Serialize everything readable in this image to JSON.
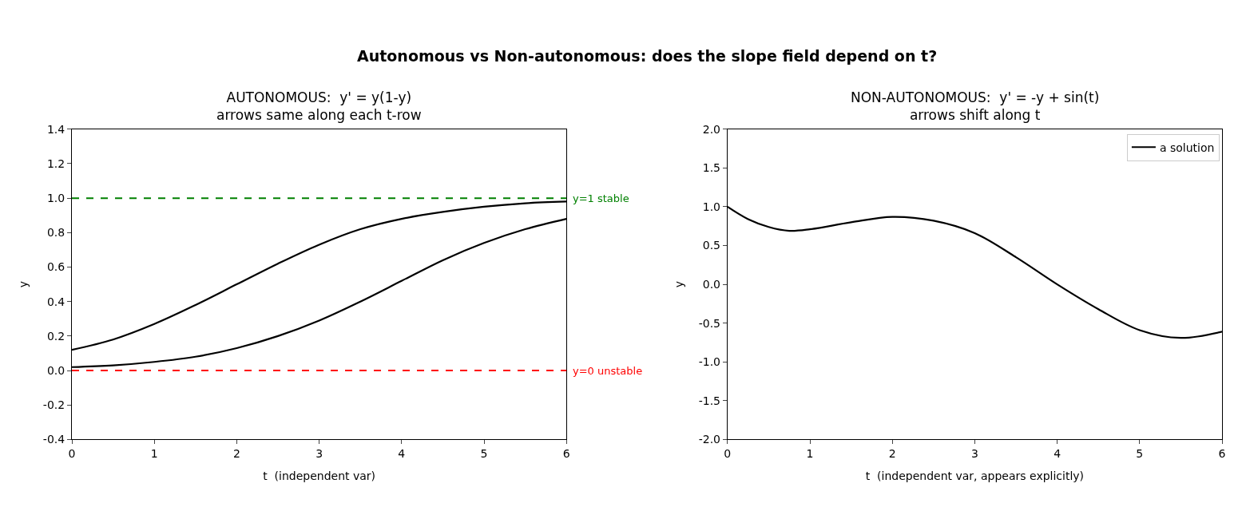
{
  "chart_data": [
    {
      "type": "line",
      "title": "AUTONOMOUS:  y' = y(1-y)\narrows same along each t-row",
      "xlabel": "t  (independent var)",
      "ylabel": "y",
      "x": [
        0,
        0.5,
        1,
        1.5,
        2,
        2.5,
        3,
        3.5,
        4,
        4.5,
        5,
        5.5,
        6
      ],
      "series": [
        {
          "color": "#000000",
          "values": [
            0.12,
            0.18,
            0.27,
            0.38,
            0.5,
            0.62,
            0.73,
            0.82,
            0.88,
            0.92,
            0.95,
            0.97,
            0.98
          ]
        },
        {
          "color": "#000000",
          "values": [
            0.02,
            0.03,
            0.05,
            0.08,
            0.13,
            0.2,
            0.29,
            0.4,
            0.52,
            0.64,
            0.74,
            0.82,
            0.88
          ]
        }
      ],
      "ref_lines": [
        {
          "axis": "y",
          "value": 1,
          "label": "y=1 stable",
          "color": "#008000",
          "line_style": "dashed"
        },
        {
          "axis": "y",
          "value": 0,
          "label": "y=0 unstable",
          "color": "#ff0000",
          "line_style": "dashed"
        }
      ],
      "xlim": [
        0,
        6
      ],
      "xticks": [
        0,
        1,
        2,
        3,
        4,
        5,
        6
      ],
      "ylim": [
        -0.4,
        1.4
      ],
      "yticks": [
        -0.4,
        -0.2,
        {
          "value": 0,
          "label": "0.0"
        },
        0.2,
        0.4,
        0.6,
        0.8,
        {
          "value": 1,
          "label": "1.0"
        },
        1.2,
        1.4
      ],
      "annotations": [
        "Autonomous vs Non-autonomous: does the slope field depend on t?"
      ],
      "line_style": "solid"
    },
    {
      "type": "line",
      "title": "NON-AUTONOMOUS:  y' = -y + sin(t)\narrows shift along t",
      "xlabel": "t  (independent var, appears explicitly)",
      "ylabel": "y",
      "x": [
        0,
        0.25,
        0.5,
        0.75,
        1,
        1.5,
        2,
        2.5,
        3,
        3.5,
        4,
        4.5,
        5,
        5.5,
        6
      ],
      "series": [
        {
          "name": "a solution",
          "color": "#000000",
          "values": [
            1.0,
            0.84,
            0.74,
            0.69,
            0.71,
            0.8,
            0.87,
            0.82,
            0.66,
            0.35,
            0.0,
            -0.32,
            -0.59,
            -0.69,
            -0.61
          ]
        }
      ],
      "xlim": [
        0,
        6
      ],
      "xticks": [
        0,
        1,
        2,
        3,
        4,
        5,
        6
      ],
      "ylim": [
        -2,
        2
      ],
      "yticks": [
        {
          "value": -2,
          "label": "-2.0"
        },
        -1.5,
        {
          "value": -1,
          "label": "-1.0"
        },
        -0.5,
        {
          "value": 0,
          "label": "0.0"
        },
        0.5,
        {
          "value": 1,
          "label": "1.0"
        },
        1.5,
        {
          "value": 2,
          "label": "2.0"
        }
      ],
      "legend": "top right",
      "line_style": "solid"
    }
  ]
}
